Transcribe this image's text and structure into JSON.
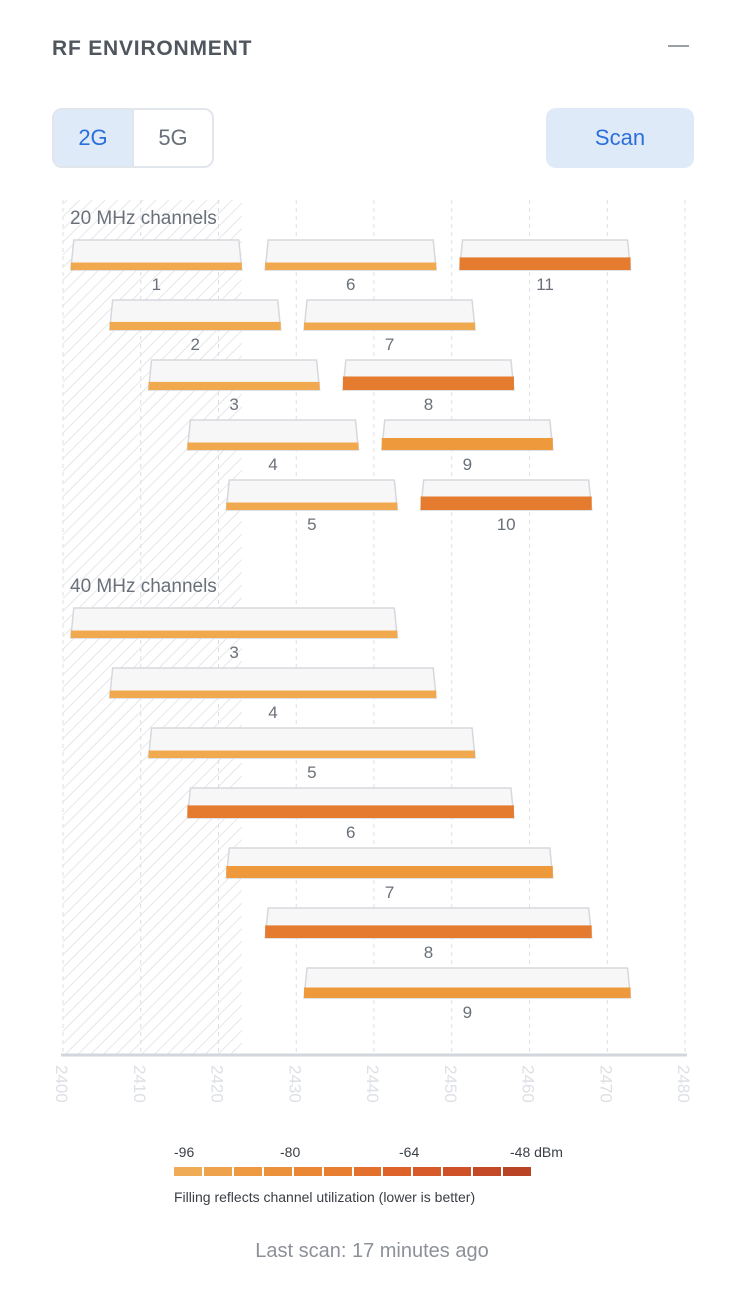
{
  "header": {
    "title": "RF ENVIRONMENT"
  },
  "band_toggle": {
    "options": [
      "2G",
      "5G"
    ],
    "selected": "2G"
  },
  "scan_button": {
    "label": "Scan"
  },
  "chart_data": {
    "type": "bar",
    "x_axis": {
      "min": 2400,
      "max": 2480,
      "ticks": [
        2400,
        2410,
        2420,
        2430,
        2440,
        2450,
        2460,
        2470,
        2480
      ]
    },
    "hatched_range": [
      2400,
      2423
    ],
    "groups": [
      {
        "label": "20 MHz channels",
        "rows": [
          [
            {
              "channel": "1",
              "start": 2401,
              "end": 2423,
              "fill": 0.25
            },
            {
              "channel": "6",
              "start": 2426,
              "end": 2448,
              "fill": 0.25
            },
            {
              "channel": "11",
              "start": 2451,
              "end": 2473,
              "fill": 0.42
            }
          ],
          [
            {
              "channel": "2",
              "start": 2406,
              "end": 2428,
              "fill": 0.27
            },
            {
              "channel": "7",
              "start": 2431,
              "end": 2453,
              "fill": 0.25
            }
          ],
          [
            {
              "channel": "3",
              "start": 2411,
              "end": 2433,
              "fill": 0.27
            },
            {
              "channel": "8",
              "start": 2436,
              "end": 2458,
              "fill": 0.45
            }
          ],
          [
            {
              "channel": "4",
              "start": 2416,
              "end": 2438,
              "fill": 0.25
            },
            {
              "channel": "9",
              "start": 2441,
              "end": 2463,
              "fill": 0.4
            }
          ],
          [
            {
              "channel": "5",
              "start": 2421,
              "end": 2443,
              "fill": 0.25
            },
            {
              "channel": "10",
              "start": 2446,
              "end": 2468,
              "fill": 0.45
            }
          ]
        ]
      },
      {
        "label": "40 MHz channels",
        "rows": [
          [
            {
              "channel": "3",
              "start": 2401,
              "end": 2443,
              "fill": 0.25
            }
          ],
          [
            {
              "channel": "4",
              "start": 2406,
              "end": 2448,
              "fill": 0.25
            }
          ],
          [
            {
              "channel": "5",
              "start": 2411,
              "end": 2453,
              "fill": 0.25
            }
          ],
          [
            {
              "channel": "6",
              "start": 2416,
              "end": 2458,
              "fill": 0.42
            }
          ],
          [
            {
              "channel": "7",
              "start": 2421,
              "end": 2463,
              "fill": 0.4
            }
          ],
          [
            {
              "channel": "8",
              "start": 2426,
              "end": 2468,
              "fill": 0.42
            }
          ],
          [
            {
              "channel": "9",
              "start": 2431,
              "end": 2473,
              "fill": 0.35
            }
          ]
        ]
      }
    ],
    "colors": {
      "fill_light": "#f0a94e",
      "fill_mid": "#ee9a3c",
      "fill_dark": "#e57b2e",
      "box": "#f7f7f7",
      "box_border": "#d5d8de",
      "grid": "#dcdfe4"
    }
  },
  "legend": {
    "tick_labels": [
      "-96",
      "-80",
      "-64",
      "-48 dBm"
    ],
    "swatches": [
      "#f0ab56",
      "#efa24c",
      "#ee9a43",
      "#ec913b",
      "#ea8734",
      "#e77e30",
      "#e3702d",
      "#de632b",
      "#d75a2a",
      "#cf5128",
      "#c44a27",
      "#b84325"
    ],
    "note": "Filling reflects channel utilization (lower is better)"
  },
  "status": {
    "last_scan": "Last scan: 17 minutes ago"
  }
}
